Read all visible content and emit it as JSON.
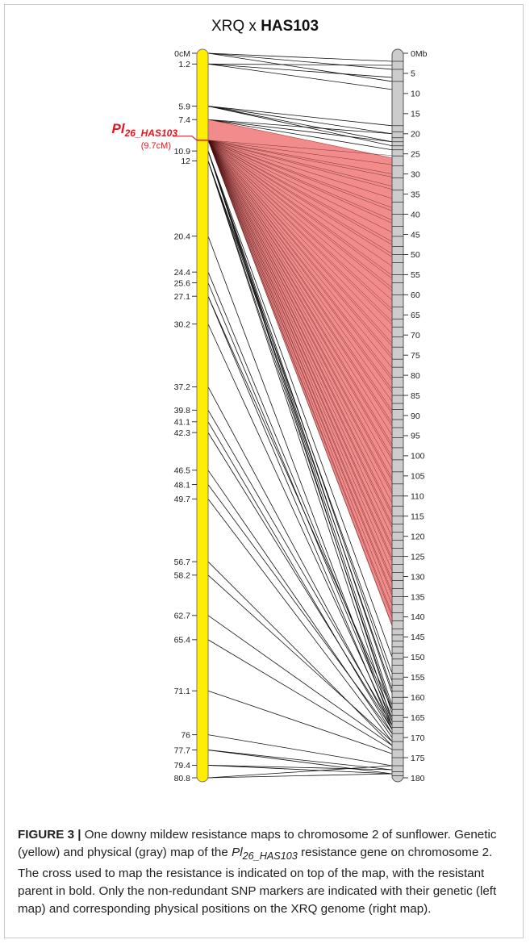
{
  "title": {
    "cross_prefix": "XRQ x ",
    "resistant_parent": "HAS103"
  },
  "gene": {
    "name_main": "Pl",
    "name_sub": "26_HAS103",
    "position_label": "(9.7cM)",
    "position_cM": 9.7,
    "color": "#e8141c"
  },
  "colors": {
    "genetic_map": "#ffee00",
    "physical_map": "#cccccc",
    "region_fill": "#f28c8c",
    "label_red": "#e8141c"
  },
  "genetic_map": {
    "top_label": "0cM",
    "ticks": [
      0,
      1.2,
      5.9,
      7.4,
      10.9,
      12,
      20.4,
      24.4,
      25.6,
      27.1,
      30.2,
      37.2,
      39.8,
      41.1,
      42.3,
      46.5,
      48.1,
      49.7,
      56.7,
      58.2,
      62.7,
      65.4,
      71.1,
      76,
      77.7,
      79.4,
      80.8
    ],
    "tick_labels": [
      "0cM",
      "1.2",
      "5.9",
      "7.4",
      "10.9",
      "12",
      "20.4",
      "24.4",
      "25.6",
      "27.1",
      "30.2",
      "37.2",
      "39.8",
      "41.1",
      "42.3",
      "46.5",
      "48.1",
      "49.7",
      "56.7",
      "58.2",
      "62.7",
      "65.4",
      "71.1",
      "76",
      "77.7",
      "79.4",
      "80.8"
    ]
  },
  "physical_map": {
    "ticks": [
      0,
      5,
      10,
      15,
      20,
      25,
      30,
      35,
      40,
      45,
      50,
      55,
      60,
      65,
      70,
      75,
      80,
      85,
      90,
      95,
      100,
      105,
      110,
      115,
      120,
      125,
      130,
      135,
      140,
      145,
      150,
      155,
      160,
      165,
      170,
      175,
      180
    ],
    "tick_labels": [
      "0Mb",
      "5",
      "10",
      "15",
      "20",
      "25",
      "30",
      "35",
      "40",
      "45",
      "50",
      "55",
      "60",
      "65",
      "70",
      "75",
      "80",
      "85",
      "90",
      "95",
      "100",
      "105",
      "110",
      "115",
      "120",
      "125",
      "130",
      "135",
      "140",
      "145",
      "150",
      "155",
      "160",
      "165",
      "170",
      "175",
      "180"
    ]
  },
  "resistance_region": {
    "genetic_cM": [
      7.4,
      9.7
    ],
    "physical_Mb": [
      26,
      142
    ]
  },
  "caption": {
    "figure_label": "FIGURE 3 |",
    "sentence1": " One downy mildew resistance maps to chromosome 2 of sunflower. Genetic (yellow) and physical (gray) map of the ",
    "gene_main": "Pl",
    "gene_sub": "26_HAS103",
    "sentence2": " resistance gene on chromosome 2. The cross used to map the resistance is indicated on top of the map, with the resistant parent in bold. Only the non-redundant SNP markers are indicated with their genetic (left map) and corresponding physical positions on the XRQ genome (right map)."
  }
}
